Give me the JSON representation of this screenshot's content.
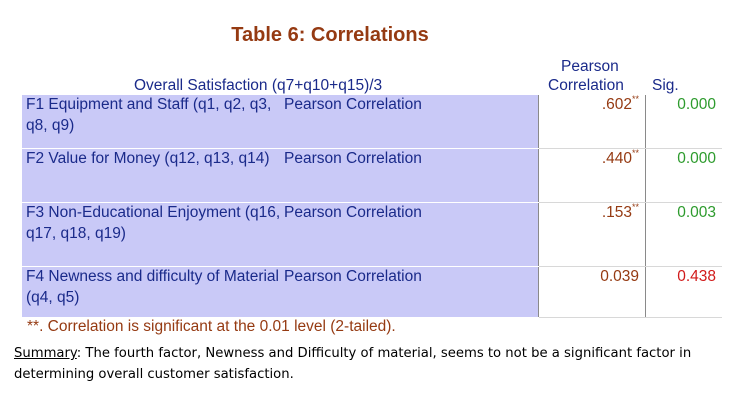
{
  "title": "Table 6: Correlations",
  "headers": {
    "overall": "Overall Satisfaction (q7+q10+q15)/3",
    "pearson_line1": "Pearson",
    "pearson_line2": "Correlation",
    "sig": "Sig."
  },
  "rows": [
    {
      "label": "F1 Equipment and Staff (q1, q2, q3, q8, q9)",
      "stat": "Pearson Correlation",
      "value": ".602",
      "stars": "**",
      "sig": "0.000",
      "significant": true
    },
    {
      "label": "F2 Value for Money (q12, q13, q14)",
      "stat": "Pearson Correlation",
      "value": ".440",
      "stars": "**",
      "sig": "0.000",
      "significant": true
    },
    {
      "label": "F3 Non-Educational Enjoyment (q16, q17, q18, q19)",
      "stat": "Pearson Correlation",
      "value": ".153",
      "stars": "**",
      "sig": "0.003",
      "significant": true
    },
    {
      "label": "F4 Newness and difficulty of Material (q4, q5)",
      "stat": "Pearson Correlation",
      "value": "0.039",
      "stars": "",
      "sig": "0.438",
      "significant": false
    }
  ],
  "footnote": "**. Correlation is significant at the 0.01 level (2-tailed).",
  "summary": {
    "label": "Summary",
    "text": ": The fourth factor, Newness and Difficulty of material, seems to not be a significant factor in determining overall customer satisfaction."
  },
  "colors": {
    "title": "#953a12",
    "header_text": "#1a2a8a",
    "row_label_bg": "#c9c9f7",
    "sig_significant": "#2d9b2d",
    "sig_not_significant": "#d11a1a"
  }
}
